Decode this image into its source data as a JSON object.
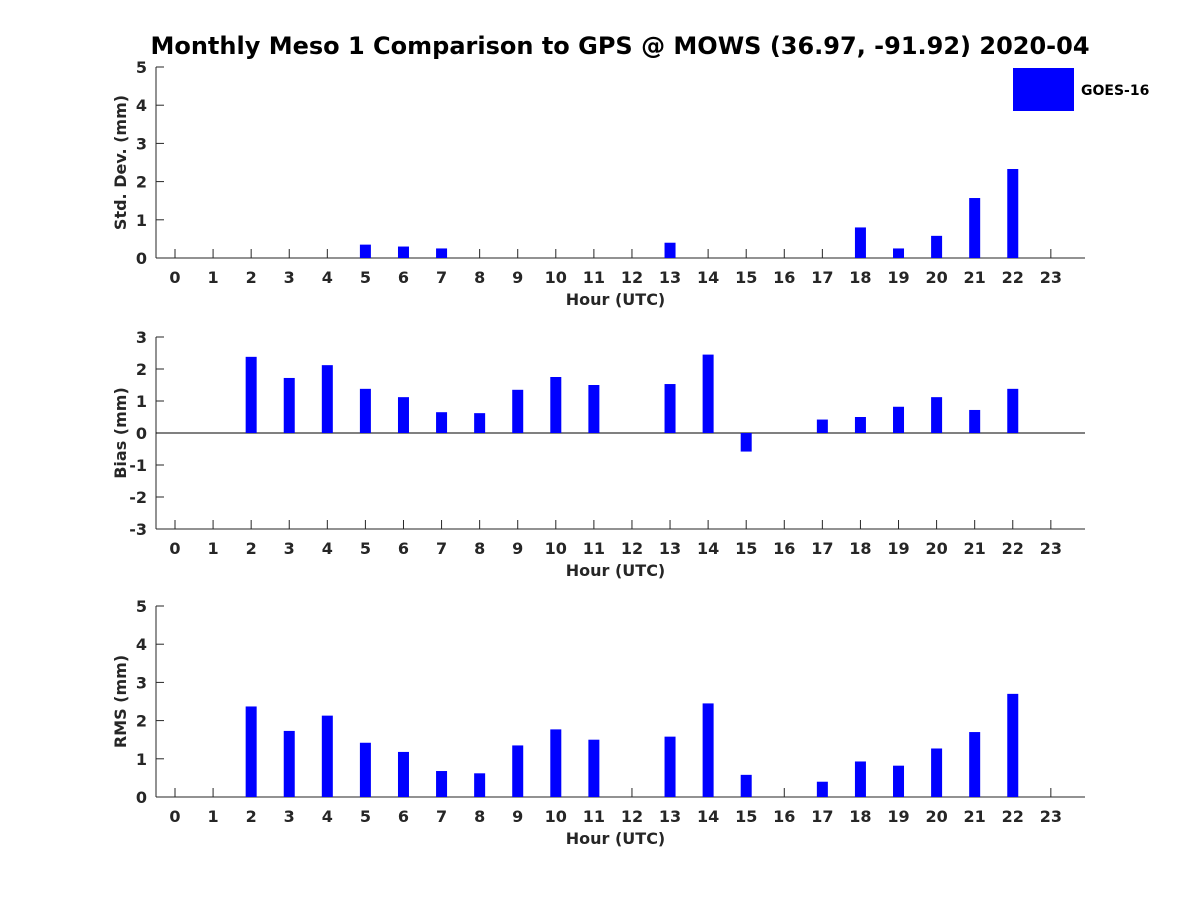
{
  "title": "Monthly Meso 1 Comparison to GPS @ MOWS (36.97, -91.92) 2020-04",
  "legend": {
    "label": "GOES-16",
    "color": "#0000ff"
  },
  "chart_data": [
    {
      "type": "bar",
      "ylabel": "Std. Dev. (mm)",
      "xlabel": "Hour (UTC)",
      "ylim": [
        0,
        5
      ],
      "yticks": [
        0,
        1,
        2,
        3,
        4,
        5
      ],
      "categories": [
        0,
        1,
        2,
        3,
        4,
        5,
        6,
        7,
        8,
        9,
        10,
        11,
        12,
        13,
        14,
        15,
        16,
        17,
        18,
        19,
        20,
        21,
        22,
        23
      ],
      "series": [
        {
          "name": "GOES-16",
          "values": [
            null,
            null,
            null,
            null,
            null,
            0.35,
            0.3,
            0.25,
            null,
            null,
            null,
            null,
            null,
            0.4,
            null,
            null,
            null,
            null,
            0.8,
            0.25,
            0.58,
            1.57,
            2.33,
            null
          ]
        }
      ],
      "grid": false,
      "legend_position": "top-right"
    },
    {
      "type": "bar",
      "ylabel": "Bias (mm)",
      "xlabel": "Hour (UTC)",
      "ylim": [
        -3,
        3
      ],
      "yticks": [
        -3,
        -2,
        -1,
        0,
        1,
        2,
        3
      ],
      "categories": [
        0,
        1,
        2,
        3,
        4,
        5,
        6,
        7,
        8,
        9,
        10,
        11,
        12,
        13,
        14,
        15,
        16,
        17,
        18,
        19,
        20,
        21,
        22,
        23
      ],
      "series": [
        {
          "name": "GOES-16",
          "values": [
            null,
            null,
            2.38,
            1.72,
            2.12,
            1.38,
            1.12,
            0.65,
            0.62,
            1.35,
            1.75,
            1.5,
            null,
            1.53,
            2.45,
            -0.58,
            null,
            0.42,
            0.5,
            0.82,
            1.12,
            0.72,
            1.38,
            null
          ]
        }
      ],
      "grid": false,
      "zero_line": true
    },
    {
      "type": "bar",
      "ylabel": "RMS (mm)",
      "xlabel": "Hour (UTC)",
      "ylim": [
        0,
        5
      ],
      "yticks": [
        0,
        1,
        2,
        3,
        4,
        5
      ],
      "categories": [
        0,
        1,
        2,
        3,
        4,
        5,
        6,
        7,
        8,
        9,
        10,
        11,
        12,
        13,
        14,
        15,
        16,
        17,
        18,
        19,
        20,
        21,
        22,
        23
      ],
      "series": [
        {
          "name": "GOES-16",
          "values": [
            null,
            null,
            2.37,
            1.73,
            2.13,
            1.42,
            1.18,
            0.68,
            0.62,
            1.35,
            1.77,
            1.5,
            null,
            1.58,
            2.45,
            0.58,
            null,
            0.4,
            0.93,
            0.82,
            1.27,
            1.7,
            2.7,
            null
          ]
        }
      ],
      "grid": false
    }
  ]
}
